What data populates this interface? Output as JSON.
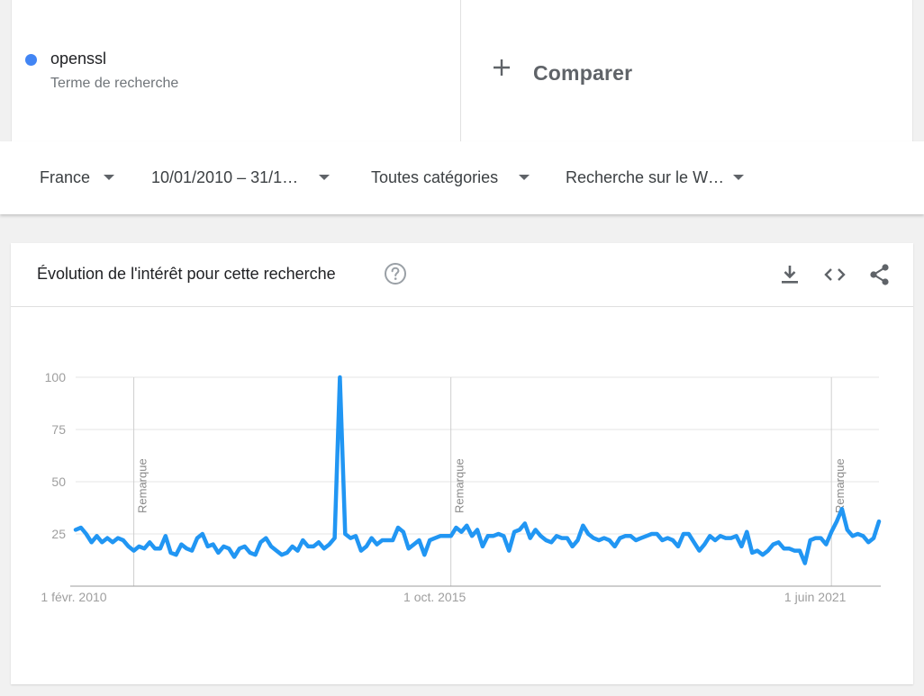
{
  "search_term": {
    "name": "openssl",
    "subtitle": "Terme de recherche",
    "color": "#4285f4"
  },
  "compare": {
    "label": "Comparer"
  },
  "filters": {
    "region": "France",
    "date_range": "10/01/2010 – 31/1…",
    "category": "Toutes catégories",
    "search_type": "Recherche sur le W…"
  },
  "card": {
    "title": "Évolution de l'intérêt pour cette recherche",
    "icons": [
      "help-icon",
      "download-icon",
      "embed-icon",
      "share-icon"
    ]
  },
  "chart_data": {
    "type": "line",
    "series": [
      {
        "name": "openssl",
        "color": "#2196f3",
        "values": [
          27,
          28,
          25,
          21,
          24,
          21,
          23,
          21,
          23,
          22,
          19,
          17,
          19,
          18,
          21,
          18,
          18,
          24,
          16,
          15,
          20,
          18,
          17,
          23,
          25,
          19,
          20,
          16,
          19,
          18,
          14,
          18,
          19,
          16,
          15,
          21,
          23,
          19,
          17,
          15,
          16,
          19,
          17,
          22,
          19,
          19,
          21,
          18,
          20,
          23,
          100,
          25,
          23,
          24,
          17,
          19,
          23,
          20,
          22,
          22,
          22,
          28,
          26,
          18,
          20,
          22,
          15,
          22,
          23,
          24,
          24,
          24,
          28,
          26,
          29,
          24,
          27,
          19,
          24,
          24,
          25,
          24,
          17,
          26,
          27,
          30,
          23,
          27,
          24,
          22,
          21,
          24,
          23,
          23,
          19,
          22,
          29,
          25,
          23,
          22,
          23,
          22,
          19,
          23,
          24,
          24,
          22,
          23,
          24,
          25,
          25,
          22,
          23,
          22,
          19,
          25,
          25,
          21,
          17,
          20,
          24,
          22,
          24,
          23,
          23,
          24,
          19,
          26,
          16,
          17,
          15,
          17,
          20,
          21,
          18,
          18,
          17,
          17,
          11,
          22,
          23,
          23,
          20,
          26,
          31,
          37,
          27,
          24,
          25,
          24,
          21,
          23,
          31
        ]
      }
    ],
    "x_tick_labels": [
      "1 févr. 2010",
      "1 oct. 2015",
      "1 juin 2021"
    ],
    "x_tick_indices": [
      0,
      71,
      143
    ],
    "y_ticks": [
      25,
      50,
      75,
      100
    ],
    "ylim": [
      0,
      100
    ],
    "annotations": [
      {
        "label": "Remarque",
        "at_index": 11
      },
      {
        "label": "Remarque",
        "at_index": 71
      },
      {
        "label": "Remarque",
        "at_index": 143
      }
    ],
    "grid": true
  }
}
